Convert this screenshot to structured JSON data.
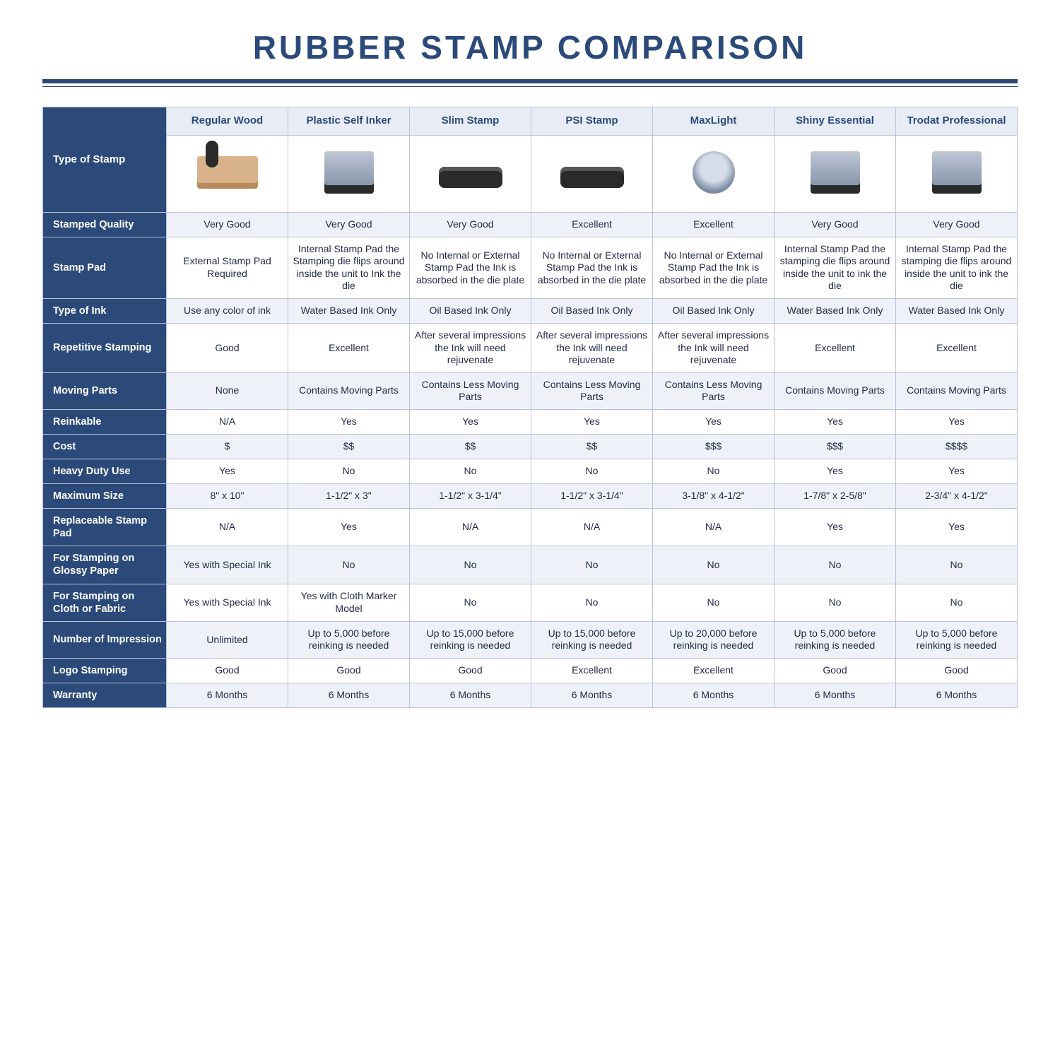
{
  "title": "RUBBER STAMP COMPARISON",
  "colors": {
    "brand": "#2b4a7a",
    "headerBg": "#e8edf5",
    "altRow": "#eef2f8",
    "border": "#b9c3d6",
    "text": "#1f2a44",
    "white": "#ffffff"
  },
  "columns": [
    "Regular Wood",
    "Plastic Self Inker",
    "Slim Stamp",
    "PSI Stamp",
    "MaxLight",
    "Shiny Essential",
    "Trodat Professional"
  ],
  "cornerLabel": "Type of Stamp",
  "iconClasses": [
    "wood",
    "mount",
    "slim",
    "slim",
    "round",
    "mount",
    "mount"
  ],
  "rows": [
    {
      "label": "Stamped Quality",
      "cells": [
        "Very Good",
        "Very Good",
        "Very Good",
        "Excellent",
        "Excellent",
        "Very Good",
        "Very Good"
      ]
    },
    {
      "label": "Stamp Pad",
      "cells": [
        "External Stamp Pad Required",
        "Internal Stamp Pad the Stamping die flips around inside the unit to Ink the die",
        "No Internal or External Stamp Pad the Ink is absorbed in the die plate",
        "No Internal or External Stamp Pad the Ink is absorbed in the die plate",
        "No Internal or External Stamp Pad the Ink is absorbed in the die plate",
        "Internal Stamp Pad the stamping die flips around inside the unit to ink the die",
        "Internal Stamp Pad the stamping die flips around inside the unit to ink the die"
      ]
    },
    {
      "label": "Type of Ink",
      "cells": [
        "Use any color of ink",
        "Water Based Ink Only",
        "Oil Based Ink Only",
        "Oil Based Ink Only",
        "Oil Based Ink Only",
        "Water Based Ink Only",
        "Water Based Ink Only"
      ]
    },
    {
      "label": "Repetitive Stamping",
      "cells": [
        "Good",
        "Excellent",
        "After several impressions the Ink will need rejuvenate",
        "After several impressions the Ink will need rejuvenate",
        "After several impressions the Ink will need rejuvenate",
        "Excellent",
        "Excellent"
      ]
    },
    {
      "label": "Moving Parts",
      "cells": [
        "None",
        "Contains Moving Parts",
        "Contains Less Moving Parts",
        "Contains Less Moving Parts",
        "Contains Less Moving Parts",
        "Contains Moving Parts",
        "Contains Moving Parts"
      ]
    },
    {
      "label": "Reinkable",
      "cells": [
        "N/A",
        "Yes",
        "Yes",
        "Yes",
        "Yes",
        "Yes",
        "Yes"
      ]
    },
    {
      "label": "Cost",
      "cells": [
        "$",
        "$$",
        "$$",
        "$$",
        "$$$",
        "$$$",
        "$$$$"
      ]
    },
    {
      "label": "Heavy Duty Use",
      "cells": [
        "Yes",
        "No",
        "No",
        "No",
        "No",
        "Yes",
        "Yes"
      ]
    },
    {
      "label": "Maximum Size",
      "cells": [
        "8\" x 10\"",
        "1-1/2\" x 3\"",
        "1-1/2\" x 3-1/4\"",
        "1-1/2\" x 3-1/4\"",
        "3-1/8\" x 4-1/2\"",
        "1-7/8\" x 2-5/8\"",
        "2-3/4\" x 4-1/2\""
      ]
    },
    {
      "label": "Replaceable Stamp Pad",
      "cells": [
        "N/A",
        "Yes",
        "N/A",
        "N/A",
        "N/A",
        "Yes",
        "Yes"
      ]
    },
    {
      "label": "For Stamping on Glossy Paper",
      "cells": [
        "Yes with Special Ink",
        "No",
        "No",
        "No",
        "No",
        "No",
        "No"
      ]
    },
    {
      "label": "For Stamping on Cloth or Fabric",
      "cells": [
        "Yes with Special Ink",
        "Yes with Cloth Marker Model",
        "No",
        "No",
        "No",
        "No",
        "No"
      ]
    },
    {
      "label": "Number of Impression",
      "cells": [
        "Unlimited",
        "Up to 5,000 before reinking is needed",
        "Up to 15,000 before reinking is needed",
        "Up to 15,000 before reinking is needed",
        "Up to 20,000 before reinking is needed",
        "Up to 5,000 before reinking is needed",
        "Up to 5,000 before reinking is needed"
      ]
    },
    {
      "label": "Logo Stamping",
      "cells": [
        "Good",
        "Good",
        "Good",
        "Excellent",
        "Excellent",
        "Good",
        "Good"
      ]
    },
    {
      "label": "Warranty",
      "cells": [
        "6 Months",
        "6 Months",
        "6 Months",
        "6 Months",
        "6 Months",
        "6 Months",
        "6 Months"
      ]
    }
  ]
}
